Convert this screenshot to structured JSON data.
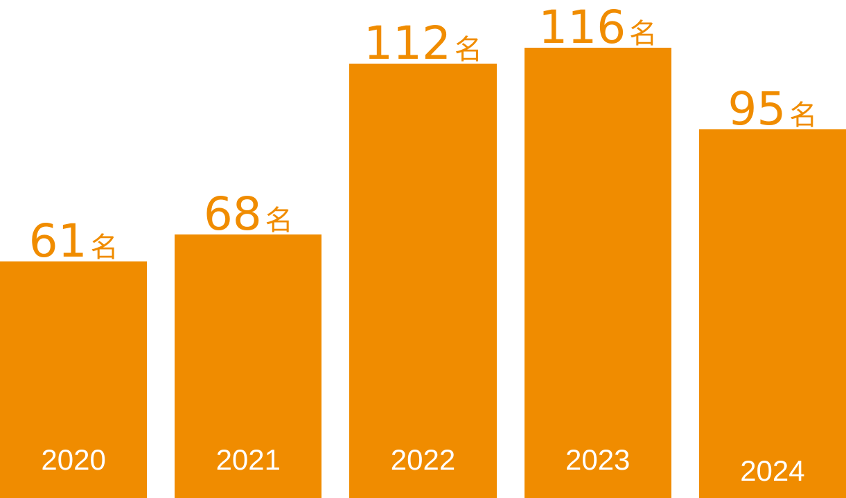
{
  "chart_data": {
    "type": "bar",
    "categories": [
      "2020",
      "2021",
      "2022",
      "2023",
      "2024"
    ],
    "values": [
      61,
      68,
      112,
      116,
      95
    ],
    "unit": "名",
    "data_labels": [
      "61名",
      "68名",
      "112名",
      "116名",
      "95名"
    ],
    "bar_color": "#F08C00",
    "value_label_color": "#F08C00",
    "year_label_color": "#FFFFFF",
    "background_color": "#FFFFFF",
    "grid": false,
    "legend": false,
    "axes_visible": false,
    "baseline": "bottom-edge"
  }
}
